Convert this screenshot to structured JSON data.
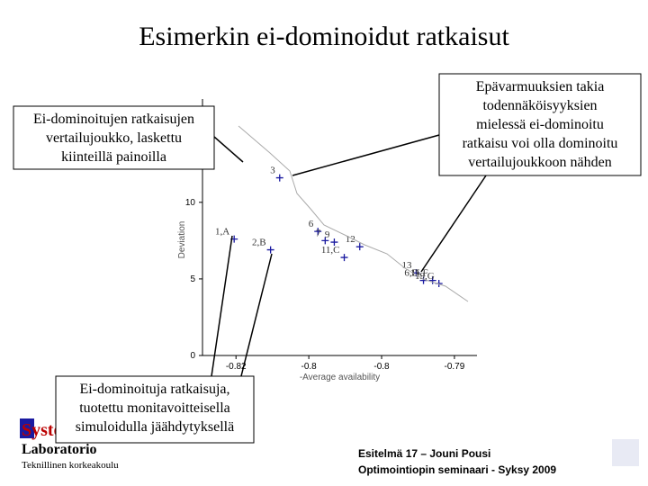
{
  "title": "Esimerkin ei-dominoidut ratkaisut",
  "chart_data": {
    "type": "scatter",
    "x_label": "-Average availability",
    "y_label": "Deviation",
    "x": [
      -0.82025,
      -0.81525,
      -0.814,
      -0.80875,
      -0.80775,
      -0.8065,
      -0.80513,
      -0.803,
      -0.79525,
      -0.79425,
      -0.793,
      -0.79213
    ],
    "values": [
      7.6,
      6.9,
      11.6,
      8.1,
      7.5,
      7.4,
      6.4,
      7.1,
      5.4,
      4.9,
      4.9,
      4.7
    ],
    "point_labels": [
      "1,A",
      "2,B",
      "3",
      "6",
      "7",
      "9",
      "11,C",
      "12",
      "13",
      "6,D",
      "15,F",
      "19,G"
    ],
    "color": "#1a1aa0",
    "xlim": [
      -0.8246,
      -0.7869
    ],
    "ylim": [
      0,
      10.4
    ],
    "xticks": [
      {
        "value": -0.82,
        "label": "-0.82"
      },
      {
        "value": -0.81,
        "label": "-0.8"
      },
      {
        "value": -0.8,
        "label": "-0.8"
      },
      {
        "value": -0.79,
        "label": "-0.79"
      }
    ],
    "yticks": [
      0,
      5,
      10
    ]
  },
  "callouts": [
    {
      "lines": [
        "Ei-dominoitujen ratkaisujen",
        "vertailujoukko, laskettu",
        "kiinteillä painoilla"
      ]
    },
    {
      "lines": [
        "Epävarmuuksien takia",
        "todennäköisyyksien",
        "mielessä ei-dominoitu",
        "ratkaisu voi olla dominoitu",
        "vertailujoukkoon nähden"
      ]
    },
    {
      "lines": [
        "Ei-dominoituja ratkaisuja,",
        "tuotettu monitavoitteisella",
        "simuloidulla jäähdytyksellä"
      ]
    }
  ],
  "footer": {
    "logo": "Systeemianalyysin",
    "lab": "Laboratorio",
    "school": "Teknillinen korkeakoulu",
    "talk": "Esitelmä 17 – Jouni Pousi",
    "seminar": "Optimointiopin seminaari - Syksy 2009"
  }
}
